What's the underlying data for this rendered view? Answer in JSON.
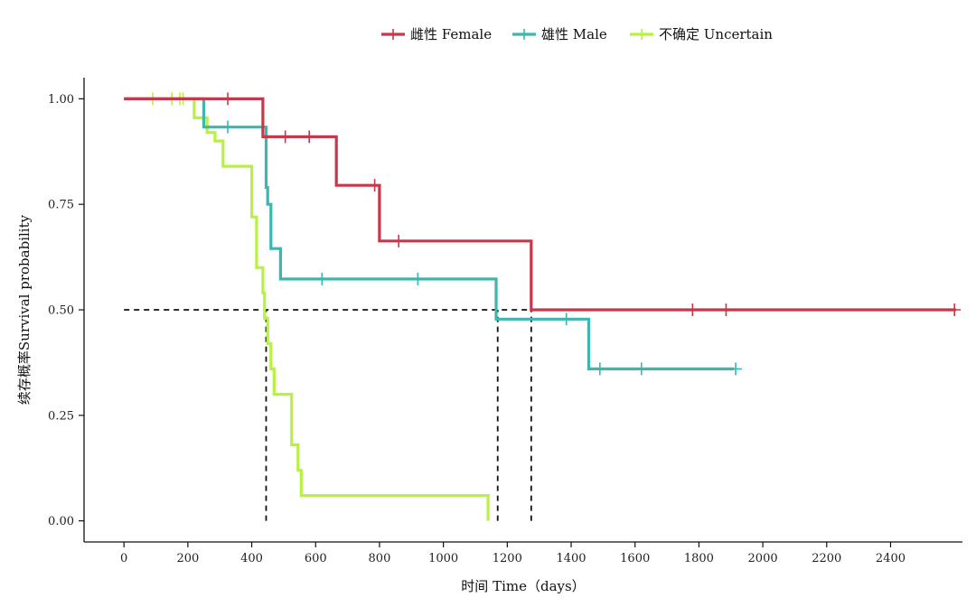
{
  "chart_data": {
    "type": "line",
    "subtype": "kaplan-meier step",
    "xlabel": "时间 Time（days）",
    "ylabel": "续存概率Survival probability",
    "xlim": [
      -125,
      2625
    ],
    "ylim": [
      -0.05,
      1.05
    ],
    "x_ticks": [
      0,
      200,
      400,
      600,
      800,
      1000,
      1200,
      1400,
      1600,
      1800,
      2000,
      2200,
      2400
    ],
    "y_ticks": [
      0.0,
      0.25,
      0.5,
      0.75,
      1.0
    ],
    "y_tick_labels": [
      "0.00",
      "0.25",
      "0.50",
      "0.75",
      "1.00"
    ],
    "legend_position": "top",
    "grid": false,
    "series": [
      {
        "name": "雌性 Female",
        "color": "#c8374a",
        "steps": [
          [
            0,
            1.0
          ],
          [
            435,
            1.0
          ],
          [
            435,
            0.91
          ],
          [
            665,
            0.91
          ],
          [
            665,
            0.795
          ],
          [
            800,
            0.795
          ],
          [
            800,
            0.663
          ],
          [
            1275,
            0.663
          ],
          [
            1275,
            0.5
          ],
          [
            2605,
            0.5
          ]
        ],
        "censored": [
          [
            325,
            1.0
          ],
          [
            505,
            0.91
          ],
          [
            580,
            0.91
          ],
          [
            785,
            0.795
          ],
          [
            860,
            0.663
          ],
          [
            1780,
            0.5
          ],
          [
            1885,
            0.5
          ],
          [
            2600,
            0.5
          ]
        ]
      },
      {
        "name": "雄性 Male",
        "color": "#3bb7b0",
        "steps": [
          [
            0,
            1.0
          ],
          [
            250,
            1.0
          ],
          [
            250,
            0.933
          ],
          [
            445,
            0.933
          ],
          [
            445,
            0.79
          ],
          [
            450,
            0.79
          ],
          [
            450,
            0.75
          ],
          [
            460,
            0.75
          ],
          [
            460,
            0.645
          ],
          [
            490,
            0.645
          ],
          [
            490,
            0.573
          ],
          [
            1165,
            0.573
          ],
          [
            1165,
            0.478
          ],
          [
            1455,
            0.478
          ],
          [
            1455,
            0.36
          ],
          [
            1910,
            0.36
          ]
        ],
        "censored": [
          [
            325,
            0.933
          ],
          [
            620,
            0.573
          ],
          [
            920,
            0.573
          ],
          [
            1385,
            0.478
          ],
          [
            1490,
            0.36
          ],
          [
            1620,
            0.36
          ],
          [
            1915,
            0.36
          ]
        ]
      },
      {
        "name": "不确定 Uncertain",
        "color": "#b7f23e",
        "steps": [
          [
            0,
            1.0
          ],
          [
            220,
            1.0
          ],
          [
            220,
            0.955
          ],
          [
            260,
            0.955
          ],
          [
            260,
            0.92
          ],
          [
            285,
            0.92
          ],
          [
            285,
            0.9
          ],
          [
            310,
            0.9
          ],
          [
            310,
            0.84
          ],
          [
            400,
            0.84
          ],
          [
            400,
            0.72
          ],
          [
            415,
            0.72
          ],
          [
            415,
            0.6
          ],
          [
            435,
            0.6
          ],
          [
            435,
            0.54
          ],
          [
            440,
            0.54
          ],
          [
            440,
            0.48
          ],
          [
            450,
            0.48
          ],
          [
            450,
            0.42
          ],
          [
            460,
            0.42
          ],
          [
            460,
            0.36
          ],
          [
            470,
            0.36
          ],
          [
            470,
            0.3
          ],
          [
            525,
            0.3
          ],
          [
            525,
            0.18
          ],
          [
            545,
            0.18
          ],
          [
            545,
            0.12
          ],
          [
            555,
            0.12
          ],
          [
            555,
            0.06
          ],
          [
            1140,
            0.06
          ],
          [
            1140,
            0.0
          ]
        ],
        "censored": [
          [
            90,
            1.0
          ],
          [
            150,
            1.0
          ],
          [
            175,
            1.0
          ],
          [
            185,
            1.0
          ]
        ]
      }
    ],
    "reference_lines": {
      "horizontal": {
        "y": 0.5,
        "x_from": 0,
        "x_to": 1275
      },
      "vertical": [
        {
          "x": 445,
          "y_from": 0,
          "y_to": 0.5
        },
        {
          "x": 1170,
          "y_from": 0,
          "y_to": 0.5
        },
        {
          "x": 1275,
          "y_from": 0,
          "y_to": 0.5
        }
      ]
    }
  }
}
